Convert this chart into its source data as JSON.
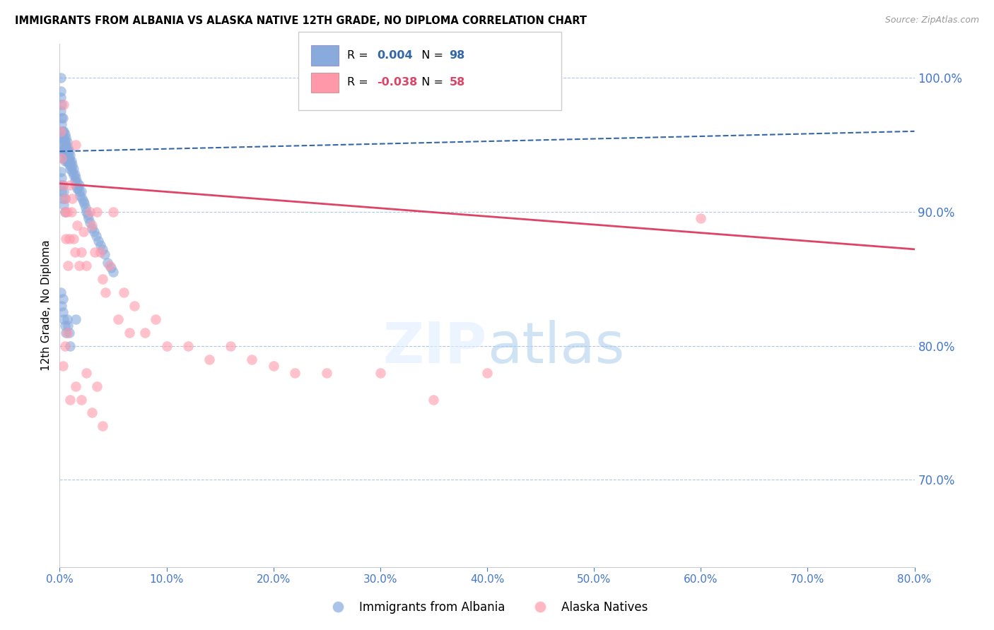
{
  "title": "IMMIGRANTS FROM ALBANIA VS ALASKA NATIVE 12TH GRADE, NO DIPLOMA CORRELATION CHART",
  "source": "Source: ZipAtlas.com",
  "ylabel_left": "12th Grade, No Diploma",
  "legend_label_blue": "Immigrants from Albania",
  "legend_label_pink": "Alaska Natives",
  "R_blue": 0.004,
  "N_blue": 98,
  "R_pink": -0.038,
  "N_pink": 58,
  "color_blue": "#88aadd",
  "color_pink": "#ff99aa",
  "color_blue_line": "#3366aa",
  "color_pink_line": "#dd4466",
  "color_axis_right": "#4477cc",
  "color_axis_x": "#4477cc",
  "xlim": [
    0.0,
    0.8
  ],
  "ylim": [
    0.635,
    1.025
  ],
  "yticks_right": [
    0.7,
    0.8,
    0.9,
    1.0
  ],
  "xticks": [
    0.0,
    0.1,
    0.2,
    0.3,
    0.4,
    0.5,
    0.6,
    0.7,
    0.8
  ],
  "blue_trend_x": [
    0.0,
    0.8
  ],
  "blue_trend_y": [
    0.945,
    0.96
  ],
  "pink_trend_x": [
    0.0,
    0.8
  ],
  "pink_trend_y": [
    0.921,
    0.872
  ],
  "blue_x": [
    0.001,
    0.001,
    0.001,
    0.001,
    0.002,
    0.002,
    0.002,
    0.002,
    0.002,
    0.003,
    0.003,
    0.003,
    0.003,
    0.003,
    0.003,
    0.004,
    0.004,
    0.004,
    0.004,
    0.005,
    0.005,
    0.005,
    0.005,
    0.005,
    0.006,
    0.006,
    0.006,
    0.006,
    0.007,
    0.007,
    0.007,
    0.007,
    0.008,
    0.008,
    0.008,
    0.009,
    0.009,
    0.009,
    0.01,
    0.01,
    0.01,
    0.011,
    0.011,
    0.012,
    0.012,
    0.013,
    0.013,
    0.014,
    0.014,
    0.015,
    0.015,
    0.016,
    0.016,
    0.017,
    0.018,
    0.018,
    0.019,
    0.02,
    0.021,
    0.022,
    0.023,
    0.024,
    0.025,
    0.026,
    0.027,
    0.028,
    0.03,
    0.032,
    0.034,
    0.036,
    0.038,
    0.04,
    0.042,
    0.045,
    0.048,
    0.05,
    0.001,
    0.001,
    0.002,
    0.002,
    0.003,
    0.003,
    0.004,
    0.004,
    0.005,
    0.005,
    0.001,
    0.002,
    0.003,
    0.003,
    0.004,
    0.005,
    0.006,
    0.007,
    0.008,
    0.009,
    0.01,
    0.015
  ],
  "blue_y": [
    1.0,
    0.99,
    0.985,
    0.975,
    0.98,
    0.97,
    0.965,
    0.96,
    0.955,
    0.97,
    0.96,
    0.955,
    0.95,
    0.945,
    0.94,
    0.96,
    0.955,
    0.95,
    0.945,
    0.958,
    0.952,
    0.948,
    0.943,
    0.938,
    0.955,
    0.95,
    0.945,
    0.94,
    0.952,
    0.947,
    0.942,
    0.937,
    0.948,
    0.943,
    0.938,
    0.945,
    0.94,
    0.935,
    0.942,
    0.937,
    0.932,
    0.938,
    0.933,
    0.935,
    0.93,
    0.932,
    0.927,
    0.928,
    0.923,
    0.925,
    0.92,
    0.922,
    0.917,
    0.918,
    0.92,
    0.915,
    0.912,
    0.915,
    0.91,
    0.908,
    0.906,
    0.903,
    0.9,
    0.898,
    0.895,
    0.892,
    0.888,
    0.885,
    0.882,
    0.878,
    0.875,
    0.872,
    0.868,
    0.862,
    0.858,
    0.855,
    0.93,
    0.92,
    0.925,
    0.915,
    0.92,
    0.91,
    0.915,
    0.905,
    0.91,
    0.9,
    0.84,
    0.83,
    0.835,
    0.825,
    0.82,
    0.815,
    0.81,
    0.82,
    0.815,
    0.81,
    0.8,
    0.82
  ],
  "pink_x": [
    0.001,
    0.002,
    0.003,
    0.004,
    0.005,
    0.005,
    0.006,
    0.007,
    0.008,
    0.009,
    0.01,
    0.011,
    0.012,
    0.013,
    0.014,
    0.015,
    0.016,
    0.018,
    0.02,
    0.022,
    0.025,
    0.028,
    0.03,
    0.033,
    0.035,
    0.038,
    0.04,
    0.043,
    0.047,
    0.05,
    0.055,
    0.06,
    0.065,
    0.07,
    0.08,
    0.09,
    0.1,
    0.12,
    0.14,
    0.16,
    0.18,
    0.2,
    0.22,
    0.25,
    0.3,
    0.35,
    0.4,
    0.003,
    0.005,
    0.007,
    0.01,
    0.015,
    0.02,
    0.025,
    0.03,
    0.035,
    0.04,
    0.6
  ],
  "pink_y": [
    0.96,
    0.94,
    0.92,
    0.98,
    0.9,
    0.91,
    0.88,
    0.9,
    0.86,
    0.88,
    0.92,
    0.9,
    0.91,
    0.88,
    0.87,
    0.95,
    0.89,
    0.86,
    0.87,
    0.885,
    0.86,
    0.9,
    0.89,
    0.87,
    0.9,
    0.87,
    0.85,
    0.84,
    0.86,
    0.9,
    0.82,
    0.84,
    0.81,
    0.83,
    0.81,
    0.82,
    0.8,
    0.8,
    0.79,
    0.8,
    0.79,
    0.785,
    0.78,
    0.78,
    0.78,
    0.76,
    0.78,
    0.785,
    0.8,
    0.81,
    0.76,
    0.77,
    0.76,
    0.78,
    0.75,
    0.77,
    0.74,
    0.895
  ]
}
